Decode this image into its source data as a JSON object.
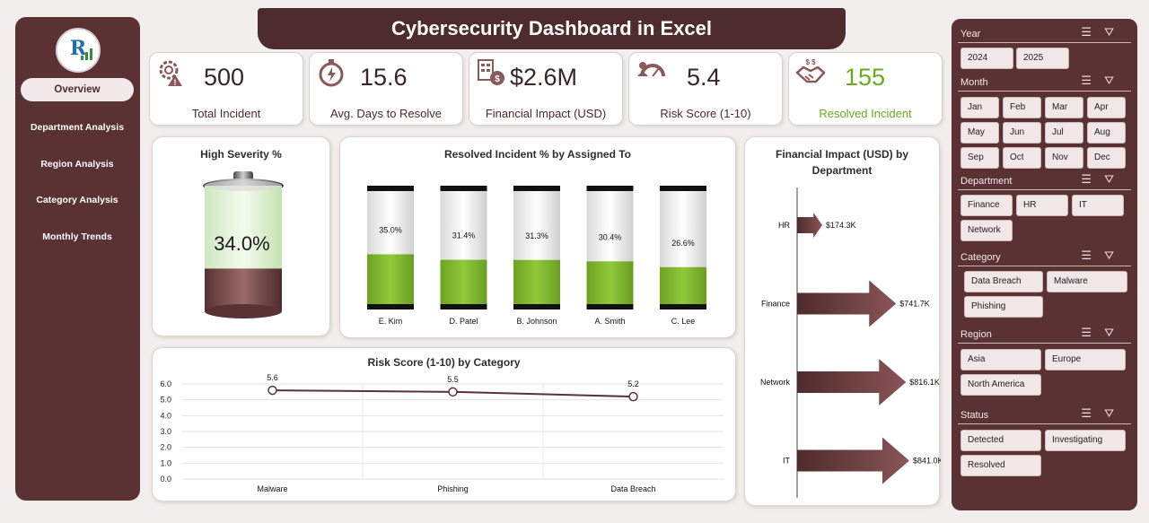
{
  "app_title": "Cybersecurity Dashboard in Excel",
  "nav": [
    {
      "label": "Overview",
      "active": true
    },
    {
      "label": "Department Analysis",
      "active": false
    },
    {
      "label": "Region Analysis",
      "active": false
    },
    {
      "label": "Category Analysis",
      "active": false
    },
    {
      "label": "Monthly Trends",
      "active": false
    }
  ],
  "kpis": [
    {
      "value": "500",
      "label": "Total Incident",
      "icon": "gear-warning-icon"
    },
    {
      "value": "15.6",
      "label": "Avg. Days to Resolve",
      "icon": "stopwatch-icon"
    },
    {
      "value": "$2.6M",
      "label": "Financial Impact (USD)",
      "icon": "finance-icon"
    },
    {
      "value": "5.4",
      "label": "Risk Score (1-10)",
      "icon": "risk-gauge-icon"
    },
    {
      "value": "155",
      "label": "Resolved Incident",
      "icon": "handshake-icon",
      "accent": "#6aaa1e"
    }
  ],
  "high_severity": {
    "title": "High Severity %",
    "value_label": "34.0%",
    "value": 34.0
  },
  "resolved_chart": {
    "title": "Resolved Incident % by Assigned To",
    "bars": [
      {
        "name": "E. Kim",
        "label": "35.0%",
        "value": 35.0
      },
      {
        "name": "D. Patel",
        "label": "31.4%",
        "value": 31.4
      },
      {
        "name": "B. Johnson",
        "label": "31.3%",
        "value": 31.3
      },
      {
        "name": "A. Smith",
        "label": "30.4%",
        "value": 30.4
      },
      {
        "name": "C. Lee",
        "label": "26.6%",
        "value": 26.6
      }
    ],
    "color": "#7cb52a"
  },
  "chart_data": {
    "type": "line",
    "title": "Risk Score (1-10) by Category",
    "categories": [
      "Malware",
      "Phishing",
      "Data Breach"
    ],
    "values": [
      5.6,
      5.5,
      5.2
    ],
    "data_labels": [
      "5.6",
      "5.5",
      "5.2"
    ],
    "ylim": [
      0,
      6
    ],
    "yticks": [
      "0.0",
      "1.0",
      "2.0",
      "3.0",
      "4.0",
      "5.0",
      "6.0"
    ],
    "grid": true
  },
  "financial_chart": {
    "title_line1": "Financial Impact (USD) by",
    "title_line2": "Department",
    "items": [
      {
        "name": "HR",
        "label": "$174.3K",
        "value": 174.3
      },
      {
        "name": "Finance",
        "label": "$741.7K",
        "value": 741.7
      },
      {
        "name": "Network",
        "label": "$816.1K",
        "value": 816.1
      },
      {
        "name": "IT",
        "label": "$841.0K",
        "value": 841.0
      }
    ],
    "color": "#6b3a3b"
  },
  "slicers": {
    "year": {
      "title": "Year",
      "items": [
        "2024",
        "2025"
      ]
    },
    "month": {
      "title": "Month",
      "items": [
        "Jan",
        "Feb",
        "Mar",
        "Apr",
        "May",
        "Jun",
        "Jul",
        "Aug",
        "Sep",
        "Oct",
        "Nov",
        "Dec"
      ]
    },
    "department": {
      "title": "Department",
      "items": [
        "Finance",
        "HR",
        "IT",
        "Network"
      ]
    },
    "category": {
      "title": "Category",
      "items": [
        "Data Breach",
        "Malware",
        "Phishing"
      ]
    },
    "region": {
      "title": "Region",
      "items": [
        "Asia",
        "Europe",
        "North America"
      ]
    },
    "status": {
      "title": "Status",
      "items": [
        "Detected",
        "Investigating",
        "Resolved"
      ]
    }
  },
  "colors": {
    "brand": "#5a3233",
    "accent_green": "#7cb52a"
  }
}
